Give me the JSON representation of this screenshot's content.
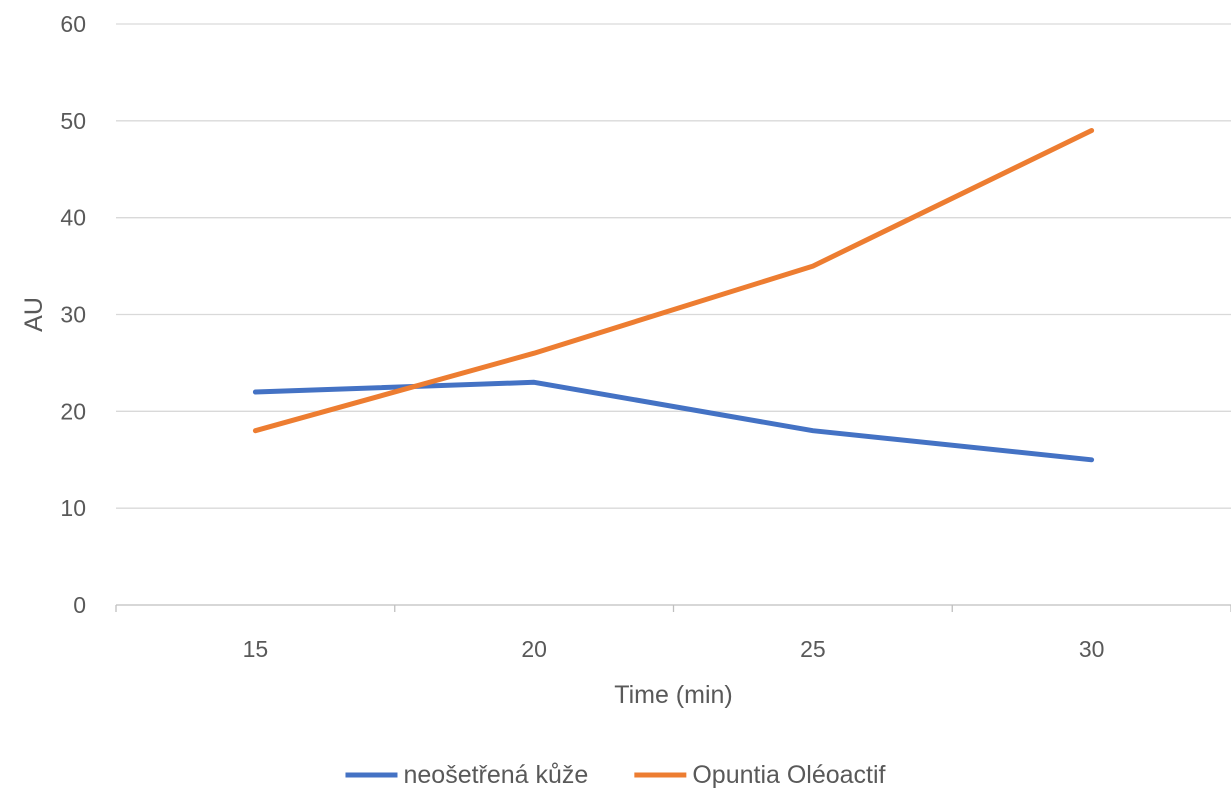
{
  "chart_data": {
    "type": "line",
    "title": "",
    "xlabel": "Time (min)",
    "ylabel": "AU",
    "categories": [
      "15",
      "20",
      "25",
      "30"
    ],
    "x": [
      15,
      20,
      25,
      30
    ],
    "ylim": [
      0,
      60
    ],
    "yticks": [
      0,
      10,
      20,
      30,
      40,
      50,
      60
    ],
    "grid": true,
    "legend_position": "bottom",
    "series": [
      {
        "name": "neošetřená kůže",
        "values": [
          22,
          23,
          18,
          15
        ],
        "color": "#4472c4"
      },
      {
        "name": "Opuntia Oléoactif",
        "values": [
          18,
          26,
          35,
          49
        ],
        "color": "#ed7d31"
      }
    ]
  }
}
